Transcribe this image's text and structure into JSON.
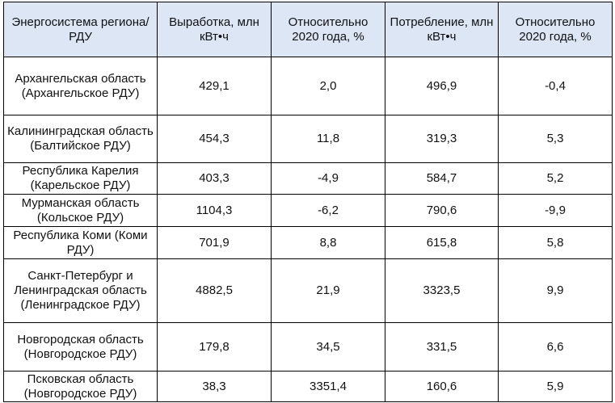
{
  "table": {
    "headers": [
      "Энергосистема региона/ РДУ",
      "Выработка, млн кВт•ч",
      "Относительно 2020 года, %",
      "Потребление, млн кВт•ч",
      "Относительно 2020 года, %"
    ],
    "rows": [
      {
        "region": "Архангельская область (Архангельское РДУ)",
        "production": "429,1",
        "production_change": "2,0",
        "consumption": "496,9",
        "consumption_change": "-0,4"
      },
      {
        "region": "Калининградская область (Балтийское РДУ)",
        "production": "454,3",
        "production_change": "11,8",
        "consumption": "319,3",
        "consumption_change": "5,3"
      },
      {
        "region": "Республика Карелия (Карельское РДУ)",
        "production": "403,3",
        "production_change": "-4,9",
        "consumption": "584,7",
        "consumption_change": "5,2"
      },
      {
        "region": "Мурманская область (Кольское РДУ)",
        "production": "1104,3",
        "production_change": "-6,2",
        "consumption": "790,6",
        "consumption_change": "-9,9"
      },
      {
        "region": "Республика Коми (Коми РДУ)",
        "production": "701,9",
        "production_change": "8,8",
        "consumption": "615,8",
        "consumption_change": "5,8"
      },
      {
        "region": "Санкт-Петербург и Ленинградская область (Ленинградское РДУ)",
        "production": "4882,5",
        "production_change": "21,9",
        "consumption": "3323,5",
        "consumption_change": "9,9"
      },
      {
        "region": "Новгородская область (Новгородское РДУ)",
        "production": "179,8",
        "production_change": "34,5",
        "consumption": "331,5",
        "consumption_change": "6,6"
      },
      {
        "region": "Псковская область (Новгородское РДУ)",
        "production": "38,3",
        "production_change": "3351,4",
        "consumption": "160,6",
        "consumption_change": "5,9"
      }
    ]
  },
  "colors": {
    "header_background": "#dce6f4",
    "border": "#000000"
  }
}
